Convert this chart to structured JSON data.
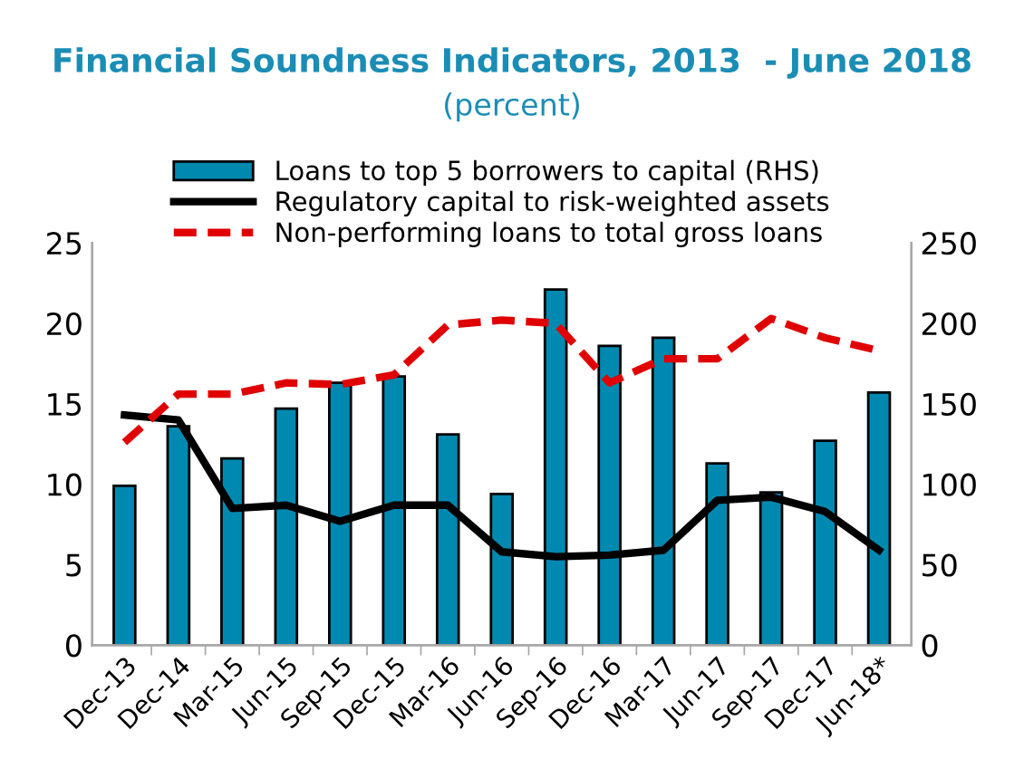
{
  "chart_data": {
    "type": "bar",
    "title": "Financial Soundness Indicators, 2013  - June 2018",
    "subtitle": "(percent)",
    "categories": [
      "Dec-13",
      "Dec-14",
      "Mar-15",
      "Jun-15",
      "Sep-15",
      "Dec-15",
      "Mar-16",
      "Jun-16",
      "Sep-16",
      "Dec-16",
      "Mar-17",
      "Jun-17",
      "Sep-17",
      "Dec-17",
      "Jun-18*"
    ],
    "series": [
      {
        "name": "Loans to top 5 borrowers to capital (RHS)",
        "axis": "y2",
        "color": "#0089b0",
        "values": [
          99,
          136,
          116,
          147,
          163,
          167,
          131,
          94,
          221,
          186,
          191,
          113,
          95,
          127,
          157
        ]
      },
      {
        "name": "Regulatory capital to risk-weighted assets",
        "type": "line",
        "color": "#000000",
        "line_style": "solid",
        "values": [
          14.3,
          14.0,
          8.5,
          8.7,
          7.7,
          8.7,
          8.7,
          5.8,
          5.5,
          5.6,
          5.9,
          9.0,
          9.2,
          8.3,
          5.9
        ]
      },
      {
        "name": "Non-performing loans to total gross loans",
        "type": "line",
        "color": "#e00000",
        "line_style": "dashed",
        "values": [
          12.6,
          15.6,
          15.6,
          16.3,
          16.2,
          16.8,
          19.9,
          20.2,
          20.0,
          16.3,
          17.8,
          17.8,
          20.3,
          19.1,
          18.3
        ]
      }
    ],
    "ylim": [
      0,
      25
    ],
    "yticks": [
      0,
      5,
      10,
      15,
      20,
      25
    ],
    "y2lim": [
      0,
      250
    ],
    "y2ticks": [
      0,
      50,
      100,
      150,
      200,
      250
    ],
    "grid": false,
    "legend": "top",
    "marker": "none"
  }
}
